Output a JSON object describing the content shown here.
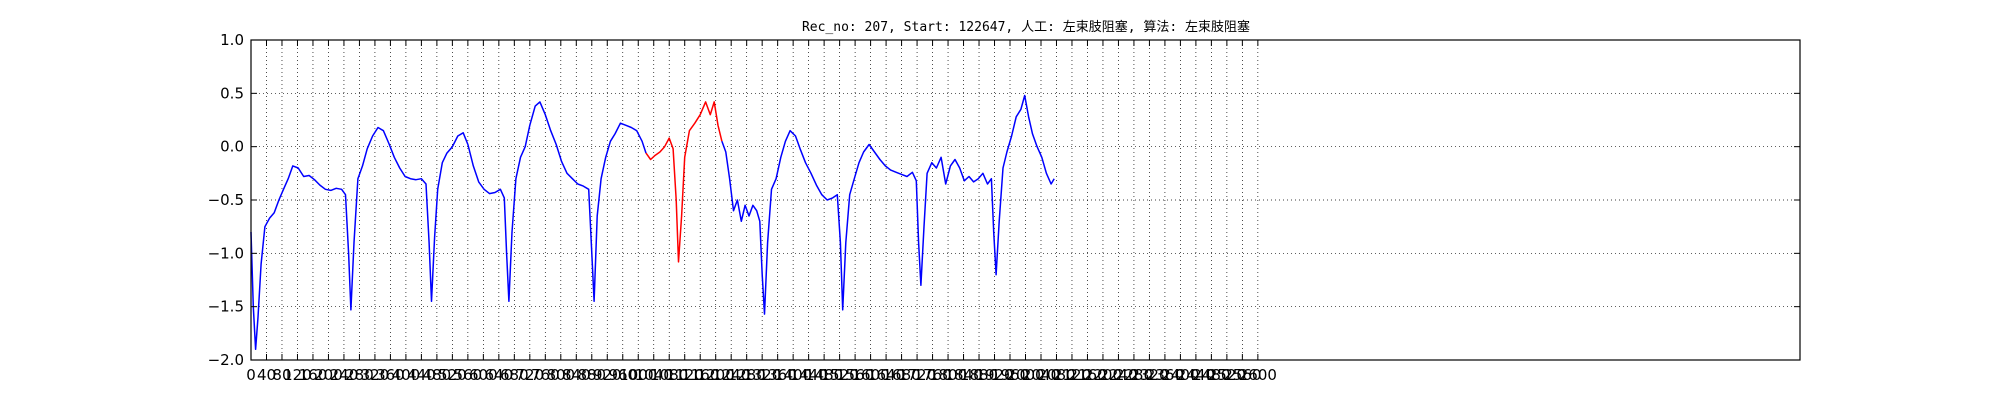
{
  "chart_data": {
    "type": "line",
    "title": "Rec_no: 207, Start: 122647, 人工: 左束肢阻塞, 算法: 左束肢阻塞",
    "xlabel": "",
    "ylabel": "",
    "xlim": [
      0,
      4000
    ],
    "ylim": [
      -2.0,
      1.0
    ],
    "grid": true,
    "x_tick_step": 40,
    "xticks": [
      "0",
      "40",
      "80",
      "120",
      "160",
      "200",
      "240",
      "280",
      "320",
      "360",
      "400",
      "440",
      "480",
      "520",
      "560",
      "600",
      "640",
      "680",
      "720",
      "760",
      "800",
      "840",
      "880",
      "920",
      "960",
      "1000",
      "1040",
      "1080",
      "1120",
      "1160",
      "1200",
      "1240",
      "1280",
      "1320",
      "1360",
      "1400",
      "1440",
      "1480",
      "1520",
      "1560",
      "1600",
      "1640",
      "1680",
      "1720",
      "1760",
      "1800",
      "1840",
      "1880",
      "1920",
      "1960",
      "2000",
      "2040",
      "2080",
      "2120",
      "2160",
      "2200",
      "2240",
      "2280",
      "2320",
      "2360",
      "2400",
      "2440",
      "2480",
      "2520",
      "2560",
      "2600"
    ],
    "yticks": [
      "1.0",
      "0.5",
      "0.0",
      "−0.5",
      "−1.0",
      "−1.5",
      "−2.0"
    ],
    "series": [
      {
        "color": "#0000ff",
        "points": [
          [
            0,
            -0.8
          ],
          [
            6,
            -1.5
          ],
          [
            12,
            -1.9
          ],
          [
            18,
            -1.6
          ],
          [
            26,
            -1.1
          ],
          [
            36,
            -0.75
          ],
          [
            48,
            -0.67
          ],
          [
            60,
            -0.62
          ],
          [
            72,
            -0.5
          ],
          [
            84,
            -0.4
          ],
          [
            96,
            -0.3
          ],
          [
            108,
            -0.18
          ],
          [
            122,
            -0.2
          ],
          [
            136,
            -0.28
          ],
          [
            150,
            -0.27
          ],
          [
            164,
            -0.31
          ],
          [
            178,
            -0.36
          ],
          [
            192,
            -0.4
          ],
          [
            206,
            -0.41
          ],
          [
            220,
            -0.39
          ],
          [
            234,
            -0.4
          ],
          [
            244,
            -0.45
          ],
          [
            252,
            -1.0
          ],
          [
            258,
            -1.53
          ],
          [
            266,
            -0.9
          ],
          [
            276,
            -0.3
          ],
          [
            288,
            -0.18
          ],
          [
            300,
            -0.02
          ],
          [
            314,
            0.1
          ],
          [
            328,
            0.18
          ],
          [
            342,
            0.15
          ],
          [
            356,
            0.03
          ],
          [
            370,
            -0.1
          ],
          [
            384,
            -0.2
          ],
          [
            398,
            -0.28
          ],
          [
            412,
            -0.3
          ],
          [
            426,
            -0.31
          ],
          [
            440,
            -0.3
          ],
          [
            452,
            -0.35
          ],
          [
            460,
            -0.9
          ],
          [
            466,
            -1.45
          ],
          [
            474,
            -0.85
          ],
          [
            482,
            -0.4
          ],
          [
            494,
            -0.15
          ],
          [
            506,
            -0.06
          ],
          [
            520,
            0.0
          ],
          [
            534,
            0.1
          ],
          [
            548,
            0.13
          ],
          [
            560,
            0.02
          ],
          [
            574,
            -0.18
          ],
          [
            588,
            -0.33
          ],
          [
            602,
            -0.4
          ],
          [
            616,
            -0.44
          ],
          [
            630,
            -0.43
          ],
          [
            644,
            -0.4
          ],
          [
            654,
            -0.48
          ],
          [
            660,
            -1.0
          ],
          [
            666,
            -1.45
          ],
          [
            674,
            -0.8
          ],
          [
            684,
            -0.3
          ],
          [
            696,
            -0.1
          ],
          [
            708,
            0.0
          ],
          [
            720,
            0.2
          ],
          [
            734,
            0.38
          ],
          [
            746,
            0.42
          ],
          [
            760,
            0.3
          ],
          [
            774,
            0.15
          ],
          [
            788,
            0.02
          ],
          [
            802,
            -0.14
          ],
          [
            816,
            -0.25
          ],
          [
            830,
            -0.3
          ],
          [
            844,
            -0.35
          ],
          [
            858,
            -0.37
          ],
          [
            872,
            -0.4
          ],
          [
            880,
            -1.0
          ],
          [
            886,
            -1.45
          ],
          [
            894,
            -0.65
          ],
          [
            904,
            -0.3
          ],
          [
            916,
            -0.1
          ],
          [
            928,
            0.05
          ],
          [
            940,
            0.12
          ],
          [
            954,
            0.22
          ],
          [
            968,
            0.2
          ],
          [
            982,
            0.18
          ],
          [
            996,
            0.15
          ],
          [
            1010,
            0.05
          ],
          [
            1020,
            -0.06
          ]
        ]
      },
      {
        "color": "#ff0000",
        "points": [
          [
            1020,
            -0.06
          ],
          [
            1032,
            -0.12
          ],
          [
            1044,
            -0.08
          ],
          [
            1056,
            -0.05
          ],
          [
            1068,
            0.0
          ],
          [
            1080,
            0.08
          ],
          [
            1090,
            -0.02
          ],
          [
            1098,
            -0.5
          ],
          [
            1104,
            -1.08
          ],
          [
            1112,
            -0.65
          ],
          [
            1120,
            -0.1
          ],
          [
            1132,
            0.15
          ],
          [
            1146,
            0.22
          ],
          [
            1160,
            0.3
          ],
          [
            1174,
            0.42
          ],
          [
            1186,
            0.3
          ],
          [
            1196,
            0.42
          ],
          [
            1206,
            0.2
          ],
          [
            1216,
            0.05
          ]
        ]
      },
      {
        "color": "#0000ff",
        "points": [
          [
            1216,
            0.05
          ],
          [
            1226,
            -0.05
          ],
          [
            1236,
            -0.3
          ],
          [
            1246,
            -0.6
          ],
          [
            1256,
            -0.5
          ],
          [
            1266,
            -0.7
          ],
          [
            1276,
            -0.55
          ],
          [
            1286,
            -0.65
          ],
          [
            1296,
            -0.55
          ],
          [
            1306,
            -0.6
          ],
          [
            1314,
            -0.7
          ],
          [
            1320,
            -1.2
          ],
          [
            1326,
            -1.57
          ],
          [
            1334,
            -0.9
          ],
          [
            1344,
            -0.4
          ],
          [
            1356,
            -0.3
          ],
          [
            1368,
            -0.1
          ],
          [
            1380,
            0.05
          ],
          [
            1392,
            0.15
          ],
          [
            1406,
            0.1
          ],
          [
            1418,
            -0.02
          ],
          [
            1432,
            -0.15
          ],
          [
            1446,
            -0.25
          ],
          [
            1460,
            -0.36
          ],
          [
            1474,
            -0.45
          ],
          [
            1488,
            -0.5
          ],
          [
            1502,
            -0.48
          ],
          [
            1514,
            -0.45
          ],
          [
            1522,
            -0.9
          ],
          [
            1528,
            -1.53
          ],
          [
            1536,
            -0.9
          ],
          [
            1546,
            -0.45
          ],
          [
            1558,
            -0.3
          ],
          [
            1570,
            -0.15
          ],
          [
            1582,
            -0.05
          ],
          [
            1596,
            0.02
          ],
          [
            1610,
            -0.05
          ],
          [
            1624,
            -0.12
          ],
          [
            1638,
            -0.18
          ],
          [
            1652,
            -0.22
          ],
          [
            1666,
            -0.24
          ],
          [
            1680,
            -0.26
          ],
          [
            1694,
            -0.28
          ],
          [
            1708,
            -0.24
          ],
          [
            1718,
            -0.32
          ],
          [
            1724,
            -0.9
          ],
          [
            1730,
            -1.3
          ],
          [
            1738,
            -0.75
          ],
          [
            1746,
            -0.25
          ],
          [
            1758,
            -0.15
          ],
          [
            1770,
            -0.2
          ],
          [
            1782,
            -0.1
          ],
          [
            1794,
            -0.35
          ],
          [
            1806,
            -0.18
          ],
          [
            1818,
            -0.12
          ],
          [
            1830,
            -0.2
          ],
          [
            1842,
            -0.32
          ],
          [
            1854,
            -0.28
          ],
          [
            1866,
            -0.33
          ],
          [
            1878,
            -0.3
          ],
          [
            1890,
            -0.25
          ],
          [
            1902,
            -0.35
          ],
          [
            1912,
            -0.3
          ],
          [
            1918,
            -0.8
          ],
          [
            1924,
            -1.2
          ],
          [
            1932,
            -0.7
          ],
          [
            1942,
            -0.2
          ],
          [
            1952,
            -0.05
          ],
          [
            1964,
            0.1
          ],
          [
            1976,
            0.28
          ],
          [
            1988,
            0.35
          ],
          [
            1998,
            0.48
          ],
          [
            2008,
            0.28
          ],
          [
            2018,
            0.12
          ],
          [
            2030,
            0.0
          ],
          [
            2042,
            -0.1
          ],
          [
            2054,
            -0.25
          ],
          [
            2066,
            -0.35
          ],
          [
            2074,
            -0.3
          ]
        ]
      }
    ]
  }
}
